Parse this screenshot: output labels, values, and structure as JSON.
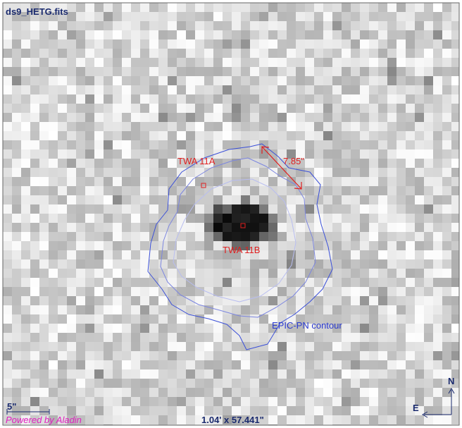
{
  "title": "ds9_HETG.fits",
  "labels": {
    "source_a": "TWA 11A",
    "separation": "7.85\"",
    "source_b": "TWA 11B",
    "contour": "EPIC-PN contour"
  },
  "scale_bar": "5\"",
  "credit": "Powered by Aladin",
  "field_size": "1.04' x 57.441\"",
  "compass": {
    "north": "N",
    "east": "E"
  }
}
